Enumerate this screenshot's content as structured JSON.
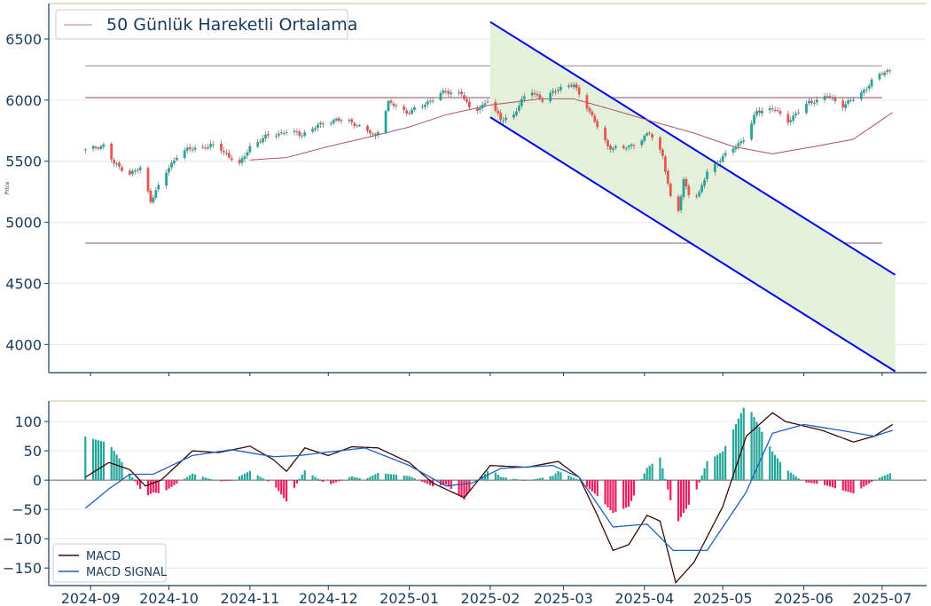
{
  "chart_data": [
    {
      "type": "candlestick",
      "ylabel": "Price",
      "ylim": [
        3770,
        6790
      ],
      "y_ticks": [
        "4000",
        "4500",
        "5000",
        "5500",
        "6000",
        "6500"
      ],
      "legend": {
        "label": "50 Günlük Hareketli Ortalama",
        "position": "top-left"
      },
      "grid": "horizontal",
      "up_color": "#26a69a",
      "down_color": "#ef5350",
      "ma_color": "#b0506a",
      "horizontal_levels": [
        {
          "y": 6280,
          "color": "#bbbbbb"
        },
        {
          "y": 6020,
          "color": "#c0a0aa"
        },
        {
          "y": 4830,
          "color": "#c0a0aa"
        }
      ],
      "channel": {
        "upper": [
          [
            "2025-02-01",
            6640
          ],
          [
            "2025-07-06",
            4570
          ]
        ],
        "lower": [
          [
            "2025-02-01",
            5860
          ],
          [
            "2025-07-06",
            3780
          ]
        ],
        "line_color": "#0000ee",
        "fill_color": "#e3f1db"
      },
      "price_anchors": [
        [
          "2024-08-30",
          5590
        ],
        [
          "2024-09-06",
          5630
        ],
        [
          "2024-09-10",
          5480
        ],
        [
          "2024-09-16",
          5400
        ],
        [
          "2024-09-20",
          5440
        ],
        [
          "2024-09-24",
          5180
        ],
        [
          "2024-09-30",
          5410
        ],
        [
          "2024-10-05",
          5580
        ],
        [
          "2024-10-12",
          5610
        ],
        [
          "2024-10-19",
          5630
        ],
        [
          "2024-10-24",
          5540
        ],
        [
          "2024-10-28",
          5470
        ],
        [
          "2024-11-01",
          5620
        ],
        [
          "2024-11-08",
          5710
        ],
        [
          "2024-11-15",
          5740
        ],
        [
          "2024-11-21",
          5720
        ],
        [
          "2024-11-29",
          5810
        ],
        [
          "2024-12-04",
          5840
        ],
        [
          "2024-12-10",
          5820
        ],
        [
          "2024-12-15",
          5760
        ],
        [
          "2024-12-19",
          5700
        ],
        [
          "2024-12-24",
          5980
        ],
        [
          "2024-12-31",
          5900
        ],
        [
          "2025-01-06",
          5950
        ],
        [
          "2025-01-13",
          6060
        ],
        [
          "2025-01-21",
          6060
        ],
        [
          "2025-01-25",
          5880
        ],
        [
          "2025-01-31",
          6000
        ],
        [
          "2025-02-05",
          5840
        ],
        [
          "2025-02-10",
          5880
        ],
        [
          "2025-02-16",
          6100
        ],
        [
          "2025-02-21",
          5990
        ],
        [
          "2025-02-27",
          6100
        ],
        [
          "2025-03-05",
          6120
        ],
        [
          "2025-03-10",
          5950
        ],
        [
          "2025-03-14",
          5780
        ],
        [
          "2025-03-18",
          5620
        ],
        [
          "2025-03-24",
          5600
        ],
        [
          "2025-03-28",
          5640
        ],
        [
          "2025-04-03",
          5730
        ],
        [
          "2025-04-08",
          5550
        ],
        [
          "2025-04-13",
          4960
        ],
        [
          "2025-04-16",
          5350
        ],
        [
          "2025-04-19",
          5180
        ],
        [
          "2025-04-22",
          5230
        ],
        [
          "2025-04-25",
          5420
        ],
        [
          "2025-05-01",
          5530
        ],
        [
          "2025-05-05",
          5610
        ],
        [
          "2025-05-10",
          5700
        ],
        [
          "2025-05-14",
          5910
        ],
        [
          "2025-05-20",
          5930
        ],
        [
          "2025-05-26",
          5830
        ],
        [
          "2025-06-03",
          5980
        ],
        [
          "2025-06-10",
          6030
        ],
        [
          "2025-06-16",
          5960
        ],
        [
          "2025-06-22",
          6030
        ],
        [
          "2025-06-28",
          6180
        ],
        [
          "2025-07-04",
          6250
        ]
      ],
      "ma_anchors": [
        [
          "2024-11-01",
          5510
        ],
        [
          "2024-11-15",
          5530
        ],
        [
          "2024-12-01",
          5620
        ],
        [
          "2024-12-15",
          5690
        ],
        [
          "2025-01-01",
          5780
        ],
        [
          "2025-01-15",
          5880
        ],
        [
          "2025-02-01",
          5960
        ],
        [
          "2025-02-20",
          6010
        ],
        [
          "2025-03-05",
          6010
        ],
        [
          "2025-03-20",
          5920
        ],
        [
          "2025-04-05",
          5820
        ],
        [
          "2025-04-20",
          5730
        ],
        [
          "2025-05-05",
          5620
        ],
        [
          "2025-05-20",
          5560
        ],
        [
          "2025-06-05",
          5620
        ],
        [
          "2025-06-20",
          5680
        ],
        [
          "2025-07-05",
          5900
        ]
      ]
    },
    {
      "type": "line+bar",
      "ylim": [
        -180,
        135
      ],
      "y_ticks": [
        "−150",
        "−100",
        "−50",
        "0",
        "50",
        "100"
      ],
      "legend": {
        "position": "bottom-left"
      },
      "hist_pos_color": "#26a69a",
      "hist_neg_color": "#e91e63",
      "series": [
        {
          "name": "MACD",
          "color": "#3a0a00",
          "anchors": [
            [
              "2024-08-30",
              5
            ],
            [
              "2024-09-08",
              30
            ],
            [
              "2024-09-16",
              18
            ],
            [
              "2024-09-22",
              -10
            ],
            [
              "2024-09-28",
              0
            ],
            [
              "2024-10-10",
              50
            ],
            [
              "2024-10-20",
              47
            ],
            [
              "2024-11-01",
              58
            ],
            [
              "2024-11-10",
              35
            ],
            [
              "2024-11-15",
              15
            ],
            [
              "2024-11-22",
              55
            ],
            [
              "2024-12-01",
              42
            ],
            [
              "2024-12-10",
              57
            ],
            [
              "2024-12-20",
              55
            ],
            [
              "2025-01-01",
              30
            ],
            [
              "2025-01-10",
              -5
            ],
            [
              "2025-01-22",
              -30
            ],
            [
              "2025-02-01",
              25
            ],
            [
              "2025-02-15",
              22
            ],
            [
              "2025-02-27",
              32
            ],
            [
              "2025-03-07",
              5
            ],
            [
              "2025-03-14",
              -60
            ],
            [
              "2025-03-20",
              -120
            ],
            [
              "2025-03-26",
              -110
            ],
            [
              "2025-04-02",
              -60
            ],
            [
              "2025-04-07",
              -70
            ],
            [
              "2025-04-13",
              -175
            ],
            [
              "2025-04-20",
              -140
            ],
            [
              "2025-05-01",
              -45
            ],
            [
              "2025-05-10",
              75
            ],
            [
              "2025-05-20",
              115
            ],
            [
              "2025-05-25",
              100
            ],
            [
              "2025-06-08",
              85
            ],
            [
              "2025-06-20",
              65
            ],
            [
              "2025-06-28",
              75
            ],
            [
              "2025-07-05",
              95
            ]
          ]
        },
        {
          "name": "MACD SIGNAL",
          "color": "#1f5fbf",
          "anchors": [
            [
              "2024-08-30",
              -48
            ],
            [
              "2024-09-08",
              -15
            ],
            [
              "2024-09-16",
              10
            ],
            [
              "2024-09-25",
              10
            ],
            [
              "2024-10-10",
              42
            ],
            [
              "2024-10-25",
              52
            ],
            [
              "2024-11-10",
              40
            ],
            [
              "2024-11-20",
              42
            ],
            [
              "2024-12-01",
              48
            ],
            [
              "2024-12-15",
              55
            ],
            [
              "2025-01-01",
              25
            ],
            [
              "2025-01-15",
              -10
            ],
            [
              "2025-01-25",
              -5
            ],
            [
              "2025-02-05",
              20
            ],
            [
              "2025-02-25",
              25
            ],
            [
              "2025-03-07",
              5
            ],
            [
              "2025-03-20",
              -80
            ],
            [
              "2025-04-02",
              -75
            ],
            [
              "2025-04-12",
              -120
            ],
            [
              "2025-04-25",
              -120
            ],
            [
              "2025-05-10",
              -20
            ],
            [
              "2025-05-20",
              80
            ],
            [
              "2025-06-01",
              95
            ],
            [
              "2025-06-15",
              85
            ],
            [
              "2025-06-28",
              75
            ],
            [
              "2025-07-05",
              85
            ]
          ]
        }
      ]
    }
  ],
  "x_axis": {
    "range": [
      "2024-08-16",
      "2025-07-18"
    ],
    "tick_dates": [
      "2024-09-01",
      "2024-10-01",
      "2024-11-01",
      "2024-12-01",
      "2025-01-01",
      "2025-02-01",
      "2025-03-01",
      "2025-04-01",
      "2025-05-01",
      "2025-06-01",
      "2025-07-01"
    ],
    "tick_labels": [
      "2024-09",
      "2024-10",
      "2024-11",
      "2024-12",
      "2025-01",
      "2025-02",
      "2025-03",
      "2025-04",
      "2025-05",
      "2025-06",
      "2025-07"
    ]
  }
}
